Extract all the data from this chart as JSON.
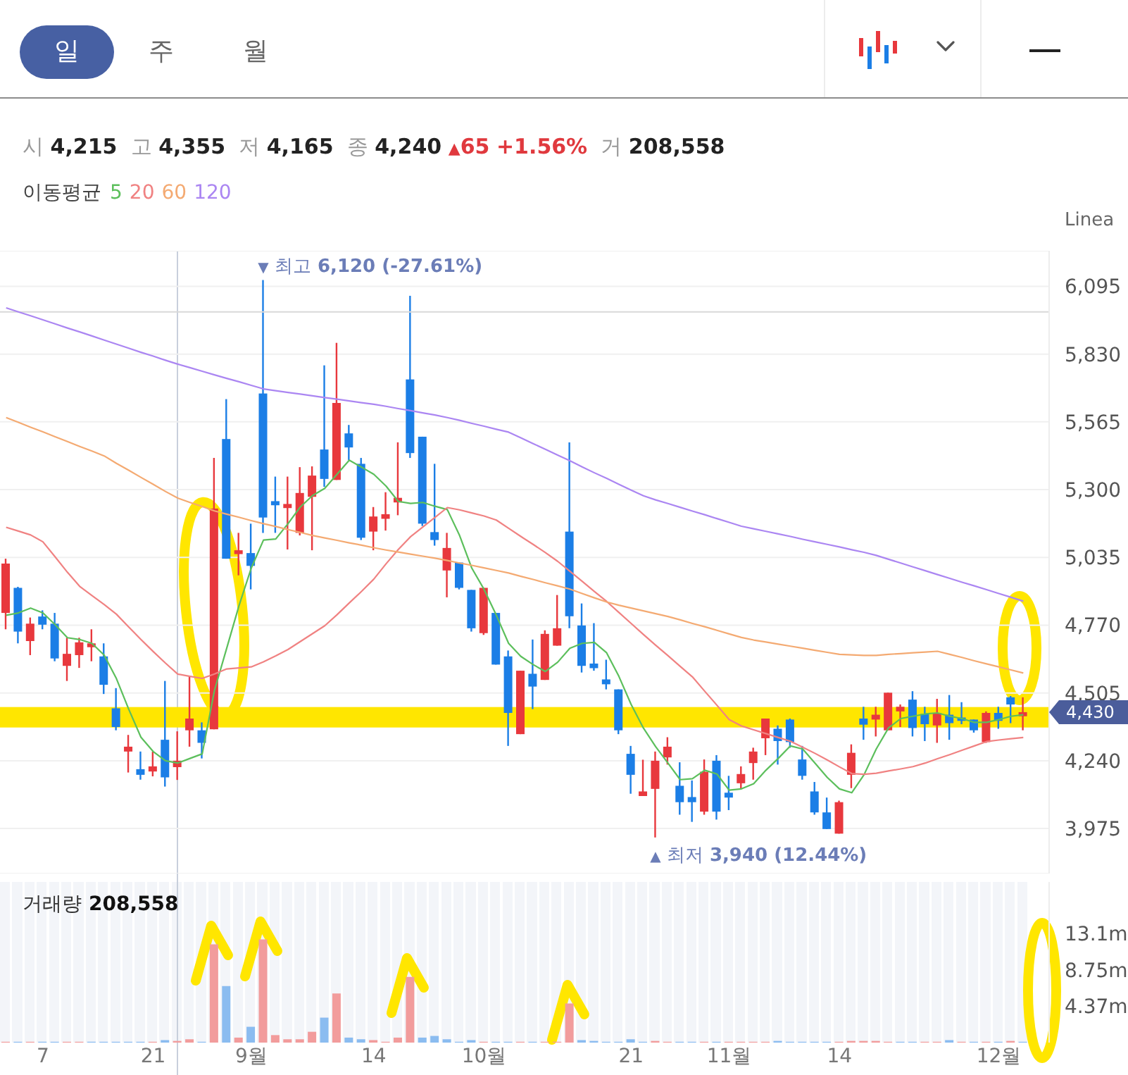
{
  "chart_data": [
    {
      "type": "other",
      "annotations": [
        "일",
        "주",
        "월"
      ]
    },
    {
      "type": "candlestick",
      "subtitle": "시 4,215 고 4,355 저 4,165 종 4,240 ▲65 +1.56% 거 208,558",
      "ylabel": "Linea",
      "legend_title": "이동평균",
      "legend": "top left",
      "annotations": [
        "▼ 최고 6,120 (-27.61%)",
        "▲ 최저 3,940 (12.44%)",
        "4,430"
      ],
      "categories": [
        null,
        null,
        null,
        null,
        null,
        null,
        null,
        null,
        null,
        null,
        null,
        null,
        null,
        null,
        null,
        null,
        null,
        null,
        null,
        null,
        null,
        null,
        null,
        null,
        null,
        null,
        null,
        null,
        null,
        null,
        null,
        null,
        null,
        null,
        null,
        null,
        null,
        null,
        null,
        null,
        null,
        null,
        null,
        null,
        null,
        null,
        null,
        null,
        null,
        null,
        null,
        null,
        null,
        null,
        null,
        null,
        null,
        null,
        null,
        null,
        null,
        null,
        null,
        null,
        null,
        null,
        null,
        null,
        null,
        null,
        null,
        null,
        null,
        null,
        null,
        null,
        null,
        null,
        null,
        null,
        null,
        null,
        null,
        null
      ],
      "ohlc": [
        [
          4818,
          5030,
          4754,
          5011
        ],
        [
          4916,
          4920,
          4699,
          4745
        ],
        [
          4708,
          4800,
          4653,
          4776
        ],
        [
          4804,
          4828,
          4754,
          4772
        ],
        [
          4776,
          4818,
          4629,
          4640
        ],
        [
          4611,
          4721,
          4552,
          4658
        ],
        [
          4653,
          4721,
          4603,
          4703
        ],
        [
          4684,
          4754,
          4629,
          4699
        ],
        [
          4648,
          4699,
          4501,
          4537
        ],
        [
          4445,
          4524,
          4359,
          4372
        ],
        [
          4276,
          4341,
          4194,
          4295
        ],
        [
          4207,
          4276,
          4166,
          4185
        ],
        [
          4198,
          4276,
          4179,
          4218
        ],
        [
          4322,
          4552,
          4139,
          4175
        ],
        [
          4215,
          4355,
          4165,
          4240
        ],
        [
          4359,
          4570,
          4295,
          4405
        ],
        [
          4359,
          4390,
          4249,
          4310
        ],
        [
          4363,
          5424,
          4363,
          5226
        ],
        [
          5498,
          5654,
          5030,
          5030
        ],
        [
          5048,
          5131,
          4965,
          5063
        ],
        [
          5052,
          5167,
          4910,
          5002
        ],
        [
          5676,
          6120,
          5131,
          5191
        ],
        [
          5255,
          5351,
          5131,
          5239
        ],
        [
          5228,
          5351,
          5066,
          5244
        ],
        [
          5131,
          5388,
          5121,
          5287
        ],
        [
          5272,
          5391,
          5063,
          5355
        ],
        [
          5457,
          5786,
          5311,
          5342
        ],
        [
          5338,
          5874,
          5338,
          5639
        ],
        [
          5520,
          5553,
          5415,
          5465
        ],
        [
          5401,
          5424,
          5103,
          5112
        ],
        [
          5136,
          5232,
          5063,
          5195
        ],
        [
          5186,
          5290,
          5140,
          5204
        ],
        [
          5250,
          5485,
          5200,
          5268
        ],
        [
          5731,
          6058,
          5424,
          5443
        ],
        [
          5507,
          5507,
          5158,
          5167
        ],
        [
          5134,
          5401,
          5081,
          5103
        ],
        [
          4984,
          5131,
          4879,
          5072
        ],
        [
          5015,
          5015,
          4910,
          4916
        ],
        [
          4908,
          4908,
          4745,
          4758
        ],
        [
          4739,
          4916,
          4732,
          4916
        ],
        [
          4818,
          4818,
          4616,
          4616
        ],
        [
          4648,
          4671,
          4298,
          4427
        ],
        [
          4344,
          4592,
          4344,
          4592
        ],
        [
          4580,
          4714,
          4442,
          4530
        ],
        [
          4556,
          4750,
          4556,
          4736
        ],
        [
          4690,
          4888,
          4690,
          4758
        ],
        [
          5136,
          5485,
          4758,
          4805
        ],
        [
          4769,
          4855,
          4585,
          4611
        ],
        [
          4620,
          4778,
          4592,
          4602
        ],
        [
          4558,
          4635,
          4519,
          4539
        ],
        [
          4519,
          4519,
          4344,
          4359
        ],
        [
          4267,
          4298,
          4111,
          4185
        ],
        [
          4102,
          4244,
          4102,
          4120
        ],
        [
          4130,
          4276,
          3940,
          4240
        ],
        [
          4253,
          4332,
          4225,
          4295
        ],
        [
          4142,
          4234,
          4029,
          4078
        ],
        [
          4098,
          4163,
          4001,
          4078
        ],
        [
          4041,
          4245,
          4029,
          4197
        ],
        [
          4240,
          4262,
          4010,
          4041
        ],
        [
          4115,
          4181,
          4047,
          4096
        ],
        [
          4152,
          4218,
          4130,
          4188
        ],
        [
          4231,
          4291,
          4166,
          4276
        ],
        [
          4328,
          4405,
          4262,
          4405
        ],
        [
          4365,
          4378,
          4225,
          4317
        ],
        [
          4401,
          4405,
          4291,
          4313
        ],
        [
          4245,
          4298,
          4166,
          4181
        ],
        [
          4120,
          4157,
          4029,
          4038
        ],
        [
          4038,
          4096,
          3973,
          3973
        ],
        [
          3955,
          4084,
          3955,
          4078
        ],
        [
          4185,
          4304,
          4133,
          4271
        ],
        [
          4405,
          4451,
          4322,
          4381
        ],
        [
          4401,
          4451,
          4335,
          4420
        ],
        [
          4359,
          4506,
          4359,
          4506
        ],
        [
          4433,
          4460,
          4372,
          4451
        ],
        [
          4479,
          4512,
          4335,
          4368
        ],
        [
          4423,
          4451,
          4317,
          4383
        ],
        [
          4378,
          4482,
          4310,
          4427
        ],
        [
          4420,
          4497,
          4322,
          4387
        ],
        [
          4409,
          4469,
          4383,
          4396
        ],
        [
          4401,
          4401,
          4350,
          4359
        ],
        [
          4313,
          4433,
          4310,
          4427
        ],
        [
          4427,
          4451,
          4365,
          4396
        ],
        [
          4488,
          4493,
          4387,
          4460
        ],
        [
          4414,
          4488,
          4359,
          4430
        ]
      ],
      "colors": [
        "#e8383d",
        "#1b7ee6",
        "#e8383d",
        "#1b7ee6",
        "#1b7ee6",
        "#e8383d",
        "#e8383d",
        "#e8383d",
        "#1b7ee6",
        "#1b7ee6",
        "#e8383d",
        "#1b7ee6",
        "#e8383d",
        "#1b7ee6",
        "#e8383d",
        "#e8383d",
        "#1b7ee6",
        "#e8383d",
        "#1b7ee6",
        "#e8383d",
        "#1b7ee6",
        "#1b7ee6",
        "#1b7ee6",
        "#e8383d",
        "#e8383d",
        "#e8383d",
        "#1b7ee6",
        "#e8383d",
        "#1b7ee6",
        "#1b7ee6",
        "#e8383d",
        "#e8383d",
        "#e8383d",
        "#1b7ee6",
        "#1b7ee6",
        "#1b7ee6",
        "#e8383d",
        "#1b7ee6",
        "#1b7ee6",
        "#e8383d",
        "#1b7ee6",
        "#1b7ee6",
        "#e8383d",
        "#1b7ee6",
        "#e8383d",
        "#e8383d",
        "#1b7ee6",
        "#1b7ee6",
        "#1b7ee6",
        "#1b7ee6",
        "#1b7ee6",
        "#1b7ee6",
        "#e8383d",
        "#e8383d",
        "#e8383d",
        "#1b7ee6",
        "#1b7ee6",
        "#e8383d",
        "#1b7ee6",
        "#1b7ee6",
        "#e8383d",
        "#e8383d",
        "#e8383d",
        "#1b7ee6",
        "#1b7ee6",
        "#1b7ee6",
        "#1b7ee6",
        "#1b7ee6",
        "#e8383d",
        "#e8383d",
        "#1b7ee6",
        "#e8383d",
        "#e8383d",
        "#e8383d",
        "#1b7ee6",
        "#1b7ee6",
        "#e8383d",
        "#1b7ee6",
        "#1b7ee6",
        "#1b7ee6",
        "#e8383d",
        "#1b7ee6",
        "#1b7ee6",
        "#e8383d"
      ],
      "series": [
        {
          "type": "line",
          "name": "5",
          "color": "#5cbf5c",
          "values": [
            4809,
            4818,
            4837,
            4818,
            4772,
            4721,
            4714,
            4699,
            4653,
            4561,
            4442,
            4332,
            4276,
            4240,
            4231,
            4249,
            4267,
            4515,
            4680,
            4846,
            4993,
            5103,
            5107,
            5167,
            5232,
            5277,
            5305,
            5360,
            5415,
            5388,
            5360,
            5314,
            5254,
            5246,
            5250,
            5235,
            5222,
            5121,
            4993,
            4910,
            4809,
            4699,
            4648,
            4616,
            4589,
            4625,
            4680,
            4699,
            4703,
            4662,
            4570,
            4460,
            4368,
            4295,
            4231,
            4166,
            4170,
            4203,
            4188,
            4125,
            4130,
            4150,
            4203,
            4249,
            4298,
            4286,
            4231,
            4175,
            4130,
            4115,
            4185,
            4286,
            4368,
            4405,
            4414,
            4423,
            4427,
            4414,
            4405,
            4390,
            4390,
            4401,
            4414,
            4420
          ]
        },
        {
          "type": "line",
          "name": "20",
          "color": "#f08282",
          "values": [
            5153,
            5138,
            5123,
            5096,
            5037,
            4977,
            4922,
            4886,
            4851,
            4813,
            4763,
            4714,
            4667,
            4622,
            4579,
            4570,
            4562,
            4579,
            4599,
            4603,
            4607,
            4627,
            4650,
            4675,
            4706,
            4737,
            4768,
            4811,
            4857,
            4902,
            4950,
            5010,
            5066,
            5116,
            5154,
            5192,
            5230,
            5221,
            5209,
            5197,
            5181,
            5149,
            5117,
            5086,
            5054,
            5020,
            4981,
            4942,
            4902,
            4863,
            4820,
            4777,
            4734,
            4692,
            4651,
            4609,
            4568,
            4512,
            4457,
            4401,
            4376,
            4361,
            4346,
            4331,
            4316,
            4293,
            4269,
            4243,
            4216,
            4190,
            4187,
            4191,
            4200,
            4208,
            4217,
            4231,
            4248,
            4264,
            4281,
            4298,
            4315,
            4321,
            4326,
            4331
          ]
        },
        {
          "type": "line",
          "name": "60",
          "color": "#f4aa72",
          "values": [
            5582,
            5563,
            5544,
            5526,
            5507,
            5488,
            5469,
            5451,
            5432,
            5403,
            5376,
            5348,
            5321,
            5293,
            5267,
            5250,
            5234,
            5217,
            5204,
            5192,
            5179,
            5167,
            5156,
            5144,
            5133,
            5121,
            5111,
            5102,
            5092,
            5083,
            5073,
            5064,
            5056,
            5048,
            5040,
            5032,
            5023,
            5013,
            5004,
            4994,
            4984,
            4974,
            4961,
            4949,
            4936,
            4924,
            4911,
            4894,
            4877,
            4861,
            4848,
            4837,
            4826,
            4815,
            4804,
            4791,
            4777,
            4764,
            4750,
            4736,
            4722,
            4712,
            4704,
            4696,
            4688,
            4680,
            4672,
            4664,
            4656,
            4654,
            4652,
            4652,
            4656,
            4659,
            4662,
            4665,
            4668,
            4656,
            4644,
            4631,
            4619,
            4607,
            4595,
            4583
          ]
        },
        {
          "type": "line",
          "name": "120",
          "color": "#ab86f2",
          "values": [
            6011,
            5995,
            5980,
            5964,
            5948,
            5932,
            5917,
            5901,
            5885,
            5869,
            5853,
            5837,
            5822,
            5806,
            5791,
            5777,
            5763,
            5749,
            5735,
            5722,
            5708,
            5694,
            5687,
            5680,
            5674,
            5667,
            5660,
            5654,
            5647,
            5640,
            5634,
            5626,
            5617,
            5609,
            5600,
            5592,
            5582,
            5571,
            5559,
            5548,
            5536,
            5525,
            5503,
            5480,
            5458,
            5435,
            5413,
            5389,
            5366,
            5344,
            5321,
            5298,
            5276,
            5260,
            5246,
            5231,
            5216,
            5202,
            5187,
            5172,
            5157,
            5147,
            5137,
            5127,
            5117,
            5106,
            5096,
            5086,
            5076,
            5065,
            5055,
            5043,
            5028,
            5013,
            4998,
            4983,
            4968,
            4953,
            4938,
            4924,
            4909,
            4894,
            4879,
            4864
          ]
        }
      ],
      "ylim": [
        3799,
        6234
      ],
      "yticks": [
        {
          "value": 3975,
          "label": "3,975"
        },
        {
          "value": 4240,
          "label": "4,240"
        },
        {
          "value": 4505,
          "label": "4,505"
        },
        {
          "value": 4770,
          "label": "4,770"
        },
        {
          "value": 5035,
          "label": "5,035"
        },
        {
          "value": 5300,
          "label": "5,300"
        },
        {
          "value": 5565,
          "label": "5,565"
        },
        {
          "value": 5830,
          "label": "5,830"
        },
        {
          "value": 6095,
          "label": "6,095"
        }
      ],
      "grid": "y",
      "tick_labels": "y",
      "ref_lines": [
        {
          "axis": "y",
          "value": 5995,
          "color": "#d9d9d9"
        }
      ],
      "bands": [
        {
          "axis": "y",
          "from": 4370,
          "to": 4450,
          "color": "#ffe600"
        }
      ]
    },
    {
      "type": "bar",
      "title": "거래량 208,558",
      "categories": [
        null,
        null,
        null,
        "7",
        null,
        null,
        null,
        null,
        null,
        null,
        null,
        null,
        "21",
        null,
        null,
        null,
        null,
        null,
        null,
        null,
        "9월",
        null,
        null,
        null,
        null,
        null,
        null,
        null,
        null,
        null,
        "14",
        null,
        null,
        null,
        null,
        null,
        null,
        null,
        null,
        "10월",
        null,
        null,
        null,
        null,
        null,
        null,
        null,
        null,
        null,
        null,
        null,
        "21",
        null,
        null,
        null,
        null,
        null,
        null,
        null,
        "11월",
        null,
        null,
        null,
        null,
        null,
        null,
        null,
        null,
        "14",
        null,
        null,
        null,
        null,
        null,
        null,
        null,
        null,
        null,
        null,
        null,
        null,
        "12월",
        null,
        null
      ],
      "values": [
        0.1,
        0.1,
        0.1,
        0.1,
        0.1,
        0.1,
        0.1,
        0.1,
        0.1,
        0.1,
        0.1,
        0.1,
        0.1,
        0.3,
        0.2,
        0.4,
        0.1,
        11.8,
        6.8,
        0.6,
        1.9,
        12.4,
        0.9,
        0.4,
        0.4,
        1.3,
        3,
        5.9,
        0.6,
        0.4,
        0.3,
        0.1,
        0.6,
        7.9,
        0.6,
        0.8,
        0.4,
        0.1,
        0.3,
        0.1,
        0.1,
        0.1,
        0.1,
        0.1,
        0.1,
        0.1,
        4.7,
        0.3,
        0.2,
        0.1,
        0.1,
        0.4,
        0.1,
        0.2,
        0.1,
        0.1,
        0.1,
        0.1,
        0.1,
        0.1,
        0.1,
        0.1,
        0.1,
        0.2,
        0.1,
        0.1,
        0.1,
        0.1,
        0.1,
        0.2,
        0.2,
        0.2,
        0.1,
        0.1,
        0.1,
        0.1,
        0.1,
        0.3,
        0.1,
        0.1,
        0.1,
        0.1,
        0.2,
        0.1
      ],
      "colors": [
        "#f29c9c",
        "#8bbcf0",
        "#f29c9c",
        "#8bbcf0",
        "#8bbcf0",
        "#f29c9c",
        "#f29c9c",
        "#8bbcf0",
        "#8bbcf0",
        "#8bbcf0",
        "#8bbcf0",
        "#8bbcf0",
        "#f29c9c",
        "#8bbcf0",
        "#f29c9c",
        "#f29c9c",
        "#8bbcf0",
        "#f29c9c",
        "#8bbcf0",
        "#f29c9c",
        "#8bbcf0",
        "#f29c9c",
        "#f29c9c",
        "#f29c9c",
        "#f29c9c",
        "#f29c9c",
        "#8bbcf0",
        "#f29c9c",
        "#8bbcf0",
        "#8bbcf0",
        "#f29c9c",
        "#f29c9c",
        "#f29c9c",
        "#f29c9c",
        "#8bbcf0",
        "#8bbcf0",
        "#8bbcf0",
        "#8bbcf0",
        "#8bbcf0",
        "#f29c9c",
        "#8bbcf0",
        "#8bbcf0",
        "#f29c9c",
        "#8bbcf0",
        "#f29c9c",
        "#f29c9c",
        "#f29c9c",
        "#8bbcf0",
        "#8bbcf0",
        "#8bbcf0",
        "#8bbcf0",
        "#8bbcf0",
        "#8bbcf0",
        "#f29c9c",
        "#f29c9c",
        "#8bbcf0",
        "#8bbcf0",
        "#f29c9c",
        "#8bbcf0",
        "#f29c9c",
        "#f29c9c",
        "#f29c9c",
        "#f29c9c",
        "#8bbcf0",
        "#8bbcf0",
        "#8bbcf0",
        "#8bbcf0",
        "#8bbcf0",
        "#f29c9c",
        "#f29c9c",
        "#f29c9c",
        "#f29c9c",
        "#f29c9c",
        "#8bbcf0",
        "#8bbcf0",
        "#f29c9c",
        "#f29c9c",
        "#8bbcf0",
        "#f29c9c",
        "#8bbcf0",
        "#f29c9c",
        "#8bbcf0",
        "#f29c9c",
        "#8bbcf0"
      ],
      "ylim": [
        0,
        19.3
      ],
      "yticks": [
        {
          "value": 4.37,
          "label": "4.37m"
        },
        {
          "value": 8.75,
          "label": "8.75m"
        },
        {
          "value": 13.1,
          "label": "13.1m"
        }
      ]
    }
  ]
}
